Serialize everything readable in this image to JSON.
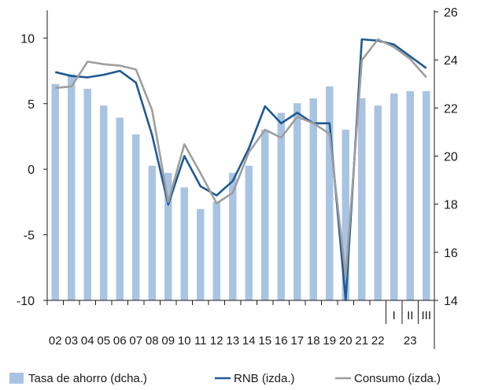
{
  "chart_data": {
    "type": "bar",
    "categories": [
      "02",
      "03",
      "04",
      "05",
      "06",
      "07",
      "08",
      "09",
      "10",
      "11",
      "12",
      "13",
      "14",
      "15",
      "16",
      "17",
      "18",
      "19",
      "20",
      "21",
      "22",
      "I",
      "II",
      "III"
    ],
    "group_labels": [
      {
        "label": "23",
        "categories": [
          "I",
          "II",
          "III"
        ]
      }
    ],
    "y_left": {
      "ylim": [
        -10,
        12
      ],
      "ticks": [
        -10,
        -5,
        0,
        5,
        10
      ]
    },
    "y_right": {
      "ylim": [
        14,
        26
      ],
      "ticks": [
        14,
        16,
        18,
        20,
        22,
        24,
        26
      ]
    },
    "series": [
      {
        "name": "Tasa de ahorro (dcha.)",
        "kind": "bar",
        "axis": "right",
        "color": "#a9c4e2",
        "values": [
          23.0,
          23.4,
          22.8,
          22.1,
          21.6,
          20.9,
          19.6,
          19.3,
          18.7,
          17.8,
          18.1,
          19.3,
          19.6,
          21.1,
          21.8,
          22.2,
          22.4,
          22.9,
          21.1,
          22.4,
          22.1,
          22.6,
          22.7,
          22.7
        ]
      },
      {
        "name": "RNB (izda.)",
        "kind": "line",
        "axis": "left",
        "color": "#1f5a93",
        "values": [
          7.4,
          7.1,
          7.0,
          7.2,
          7.5,
          6.6,
          2.6,
          -2.7,
          1.0,
          -1.3,
          -2.0,
          -0.9,
          1.6,
          4.8,
          3.5,
          4.3,
          3.5,
          3.5,
          -10.0,
          9.9,
          9.8,
          9.5,
          8.6,
          7.7
        ]
      },
      {
        "name": "Consumo (izda.)",
        "kind": "line",
        "axis": "left",
        "color": "#9e9e9e",
        "values": [
          6.2,
          6.3,
          8.2,
          8.0,
          7.9,
          7.6,
          4.5,
          -2.5,
          1.9,
          -0.3,
          -2.6,
          -1.8,
          1.3,
          3.0,
          2.4,
          4.0,
          3.5,
          2.7,
          -8.2,
          8.3,
          9.9,
          9.3,
          8.4,
          7.0
        ]
      }
    ],
    "legend_position": "bottom",
    "grid": false
  }
}
